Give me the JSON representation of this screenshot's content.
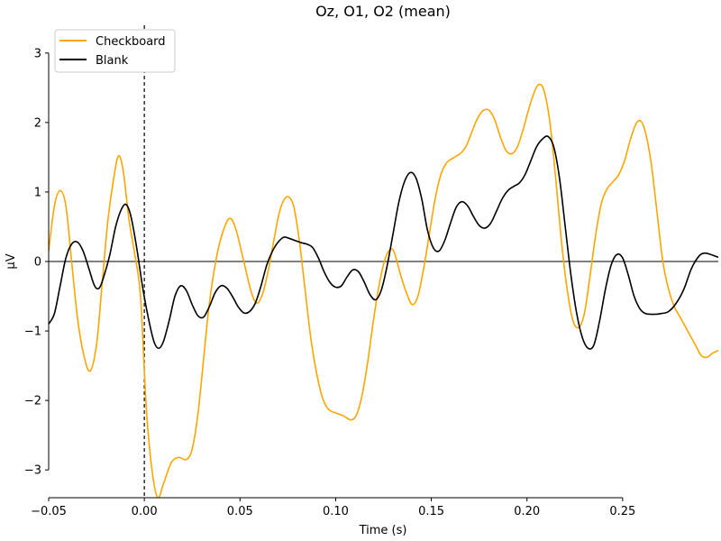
{
  "chart_data": {
    "type": "line",
    "title": "Oz, O1, O2 (mean)",
    "xlabel": "Time (s)",
    "ylabel": "µV",
    "xlim": [
      -0.05,
      0.3
    ],
    "ylim": [
      -3.4,
      3.4
    ],
    "x_ticks": [
      -0.05,
      0.0,
      0.05,
      0.1,
      0.15,
      0.2,
      0.25
    ],
    "x_tick_labels": [
      "−0.05",
      "0.00",
      "0.05",
      "0.10",
      "0.15",
      "0.20",
      "0.25"
    ],
    "y_ticks": [
      -3,
      -2,
      -1,
      0,
      1,
      2,
      3
    ],
    "y_tick_labels": [
      "−3",
      "−2",
      "−1",
      "0",
      "1",
      "2",
      "3"
    ],
    "stimulus_onset": 0.0,
    "zero_line": true,
    "grid": false,
    "legend_position": "top-left",
    "series": [
      {
        "name": "Checkboard",
        "color": "#ffa500",
        "points": [
          [
            -0.05,
            0.15
          ],
          [
            -0.047,
            0.8
          ],
          [
            -0.044,
            1.02
          ],
          [
            -0.041,
            0.8
          ],
          [
            -0.038,
            0.0
          ],
          [
            -0.035,
            -0.8
          ],
          [
            -0.032,
            -1.3
          ],
          [
            -0.0285,
            -1.58
          ],
          [
            -0.025,
            -1.2
          ],
          [
            -0.022,
            -0.3
          ],
          [
            -0.019,
            0.6
          ],
          [
            -0.016,
            1.2
          ],
          [
            -0.0135,
            1.52
          ],
          [
            -0.011,
            1.3
          ],
          [
            -0.008,
            0.6
          ],
          [
            -0.005,
            0.1
          ],
          [
            -0.002,
            -0.5
          ],
          [
            0.001,
            -2.1
          ],
          [
            0.004,
            -3.0
          ],
          [
            0.007,
            -3.4
          ],
          [
            0.01,
            -3.2
          ],
          [
            0.014,
            -2.9
          ],
          [
            0.018,
            -2.82
          ],
          [
            0.022,
            -2.85
          ],
          [
            0.025,
            -2.7
          ],
          [
            0.028,
            -2.2
          ],
          [
            0.031,
            -1.4
          ],
          [
            0.034,
            -0.6
          ],
          [
            0.038,
            0.1
          ],
          [
            0.042,
            0.5
          ],
          [
            0.045,
            0.62
          ],
          [
            0.048,
            0.45
          ],
          [
            0.052,
            0.0
          ],
          [
            0.056,
            -0.45
          ],
          [
            0.059,
            -0.6
          ],
          [
            0.062,
            -0.45
          ],
          [
            0.065,
            -0.1
          ],
          [
            0.068,
            0.35
          ],
          [
            0.071,
            0.75
          ],
          [
            0.0745,
            0.93
          ],
          [
            0.078,
            0.8
          ],
          [
            0.081,
            0.3
          ],
          [
            0.084,
            -0.4
          ],
          [
            0.087,
            -1.1
          ],
          [
            0.09,
            -1.6
          ],
          [
            0.093,
            -1.95
          ],
          [
            0.096,
            -2.12
          ],
          [
            0.1,
            -2.18
          ],
          [
            0.104,
            -2.22
          ],
          [
            0.108,
            -2.28
          ],
          [
            0.111,
            -2.2
          ],
          [
            0.114,
            -1.9
          ],
          [
            0.117,
            -1.4
          ],
          [
            0.12,
            -0.8
          ],
          [
            0.123,
            -0.3
          ],
          [
            0.126,
            0.05
          ],
          [
            0.129,
            0.18
          ],
          [
            0.131,
            0.1
          ],
          [
            0.134,
            -0.2
          ],
          [
            0.137,
            -0.45
          ],
          [
            0.14,
            -0.62
          ],
          [
            0.143,
            -0.5
          ],
          [
            0.146,
            -0.1
          ],
          [
            0.149,
            0.4
          ],
          [
            0.152,
            0.9
          ],
          [
            0.155,
            1.25
          ],
          [
            0.158,
            1.42
          ],
          [
            0.162,
            1.5
          ],
          [
            0.165,
            1.55
          ],
          [
            0.168,
            1.65
          ],
          [
            0.171,
            1.85
          ],
          [
            0.174,
            2.05
          ],
          [
            0.177,
            2.17
          ],
          [
            0.18,
            2.18
          ],
          [
            0.183,
            2.05
          ],
          [
            0.186,
            1.8
          ],
          [
            0.189,
            1.6
          ],
          [
            0.192,
            1.55
          ],
          [
            0.195,
            1.65
          ],
          [
            0.198,
            1.9
          ],
          [
            0.201,
            2.2
          ],
          [
            0.204,
            2.45
          ],
          [
            0.2065,
            2.55
          ],
          [
            0.209,
            2.45
          ],
          [
            0.212,
            2.0
          ],
          [
            0.215,
            1.2
          ],
          [
            0.218,
            0.3
          ],
          [
            0.221,
            -0.4
          ],
          [
            0.224,
            -0.85
          ],
          [
            0.227,
            -0.95
          ],
          [
            0.23,
            -0.75
          ],
          [
            0.233,
            -0.2
          ],
          [
            0.236,
            0.4
          ],
          [
            0.239,
            0.85
          ],
          [
            0.242,
            1.05
          ],
          [
            0.245,
            1.15
          ],
          [
            0.248,
            1.25
          ],
          [
            0.251,
            1.45
          ],
          [
            0.254,
            1.75
          ],
          [
            0.257,
            1.98
          ],
          [
            0.2595,
            2.02
          ],
          [
            0.262,
            1.85
          ],
          [
            0.265,
            1.4
          ],
          [
            0.268,
            0.7
          ],
          [
            0.271,
            0.0
          ],
          [
            0.274,
            -0.4
          ],
          [
            0.277,
            -0.65
          ],
          [
            0.28,
            -0.8
          ],
          [
            0.284,
            -1.0
          ],
          [
            0.288,
            -1.2
          ],
          [
            0.291,
            -1.35
          ],
          [
            0.294,
            -1.38
          ],
          [
            0.297,
            -1.32
          ],
          [
            0.3,
            -1.28
          ]
        ]
      },
      {
        "name": "Blank",
        "color": "#000000",
        "points": [
          [
            -0.05,
            -0.9
          ],
          [
            -0.047,
            -0.75
          ],
          [
            -0.044,
            -0.35
          ],
          [
            -0.041,
            0.05
          ],
          [
            -0.038,
            0.25
          ],
          [
            -0.035,
            0.28
          ],
          [
            -0.032,
            0.15
          ],
          [
            -0.029,
            -0.1
          ],
          [
            -0.026,
            -0.35
          ],
          [
            -0.0235,
            -0.38
          ],
          [
            -0.021,
            -0.2
          ],
          [
            -0.018,
            0.1
          ],
          [
            -0.015,
            0.5
          ],
          [
            -0.012,
            0.75
          ],
          [
            -0.0095,
            0.82
          ],
          [
            -0.007,
            0.65
          ],
          [
            -0.004,
            0.2
          ],
          [
            -0.001,
            -0.35
          ],
          [
            0.002,
            -0.8
          ],
          [
            0.005,
            -1.15
          ],
          [
            0.0075,
            -1.25
          ],
          [
            0.01,
            -1.15
          ],
          [
            0.013,
            -0.85
          ],
          [
            0.016,
            -0.5
          ],
          [
            0.019,
            -0.35
          ],
          [
            0.022,
            -0.42
          ],
          [
            0.025,
            -0.62
          ],
          [
            0.028,
            -0.78
          ],
          [
            0.031,
            -0.8
          ],
          [
            0.034,
            -0.65
          ],
          [
            0.037,
            -0.45
          ],
          [
            0.04,
            -0.35
          ],
          [
            0.043,
            -0.38
          ],
          [
            0.046,
            -0.5
          ],
          [
            0.049,
            -0.65
          ],
          [
            0.052,
            -0.74
          ],
          [
            0.055,
            -0.72
          ],
          [
            0.058,
            -0.6
          ],
          [
            0.061,
            -0.35
          ],
          [
            0.064,
            -0.05
          ],
          [
            0.067,
            0.15
          ],
          [
            0.07,
            0.28
          ],
          [
            0.073,
            0.35
          ],
          [
            0.076,
            0.33
          ],
          [
            0.079,
            0.3
          ],
          [
            0.082,
            0.27
          ],
          [
            0.085,
            0.25
          ],
          [
            0.088,
            0.2
          ],
          [
            0.091,
            0.05
          ],
          [
            0.094,
            -0.15
          ],
          [
            0.097,
            -0.3
          ],
          [
            0.1,
            -0.37
          ],
          [
            0.103,
            -0.35
          ],
          [
            0.106,
            -0.22
          ],
          [
            0.109,
            -0.12
          ],
          [
            0.112,
            -0.15
          ],
          [
            0.115,
            -0.3
          ],
          [
            0.118,
            -0.48
          ],
          [
            0.121,
            -0.55
          ],
          [
            0.124,
            -0.4
          ],
          [
            0.127,
            -0.05
          ],
          [
            0.13,
            0.4
          ],
          [
            0.133,
            0.85
          ],
          [
            0.136,
            1.15
          ],
          [
            0.139,
            1.28
          ],
          [
            0.142,
            1.2
          ],
          [
            0.145,
            0.9
          ],
          [
            0.148,
            0.45
          ],
          [
            0.151,
            0.2
          ],
          [
            0.154,
            0.15
          ],
          [
            0.157,
            0.3
          ],
          [
            0.16,
            0.55
          ],
          [
            0.163,
            0.78
          ],
          [
            0.166,
            0.86
          ],
          [
            0.169,
            0.8
          ],
          [
            0.172,
            0.65
          ],
          [
            0.175,
            0.52
          ],
          [
            0.178,
            0.48
          ],
          [
            0.181,
            0.55
          ],
          [
            0.184,
            0.72
          ],
          [
            0.187,
            0.9
          ],
          [
            0.19,
            1.02
          ],
          [
            0.193,
            1.08
          ],
          [
            0.196,
            1.13
          ],
          [
            0.199,
            1.25
          ],
          [
            0.202,
            1.45
          ],
          [
            0.205,
            1.65
          ],
          [
            0.208,
            1.76
          ],
          [
            0.211,
            1.8
          ],
          [
            0.214,
            1.65
          ],
          [
            0.217,
            1.2
          ],
          [
            0.22,
            0.5
          ],
          [
            0.223,
            -0.2
          ],
          [
            0.226,
            -0.75
          ],
          [
            0.229,
            -1.1
          ],
          [
            0.232,
            -1.25
          ],
          [
            0.235,
            -1.2
          ],
          [
            0.238,
            -0.85
          ],
          [
            0.241,
            -0.4
          ],
          [
            0.244,
            -0.05
          ],
          [
            0.247,
            0.1
          ],
          [
            0.25,
            0.05
          ],
          [
            0.253,
            -0.2
          ],
          [
            0.256,
            -0.5
          ],
          [
            0.259,
            -0.68
          ],
          [
            0.262,
            -0.75
          ],
          [
            0.266,
            -0.76
          ],
          [
            0.27,
            -0.75
          ],
          [
            0.274,
            -0.72
          ],
          [
            0.278,
            -0.6
          ],
          [
            0.282,
            -0.4
          ],
          [
            0.286,
            -0.1
          ],
          [
            0.29,
            0.08
          ],
          [
            0.293,
            0.12
          ],
          [
            0.296,
            0.1
          ],
          [
            0.3,
            0.06
          ]
        ]
      }
    ]
  }
}
